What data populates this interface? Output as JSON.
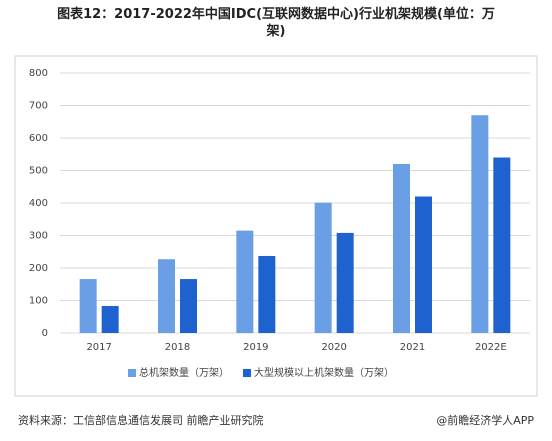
{
  "chart_data": {
    "type": "bar",
    "title": "图表12：2017-2022年中国IDC(互联网数据中心)行业机架规模(单位：万架)",
    "categories": [
      "2017",
      "2018",
      "2019",
      "2020",
      "2021",
      "2022E"
    ],
    "series": [
      {
        "name": "总机架数量（万架）",
        "color": "#6a9fe6",
        "values": [
          166,
          227,
          315,
          401,
          520,
          670
        ]
      },
      {
        "name": "大型规模以上机架数量（万架）",
        "color": "#1e62d0",
        "values": [
          83,
          166,
          237,
          308,
          420,
          540
        ]
      }
    ],
    "ylim": [
      0,
      800
    ],
    "yticks": [
      0,
      100,
      200,
      300,
      400,
      500,
      600,
      700,
      800
    ],
    "grid": true,
    "legend": "bottom",
    "source": "资料来源：工信部信息通信发展司 前瞻产业研究院",
    "credit": "@前瞻经济学人APP"
  }
}
